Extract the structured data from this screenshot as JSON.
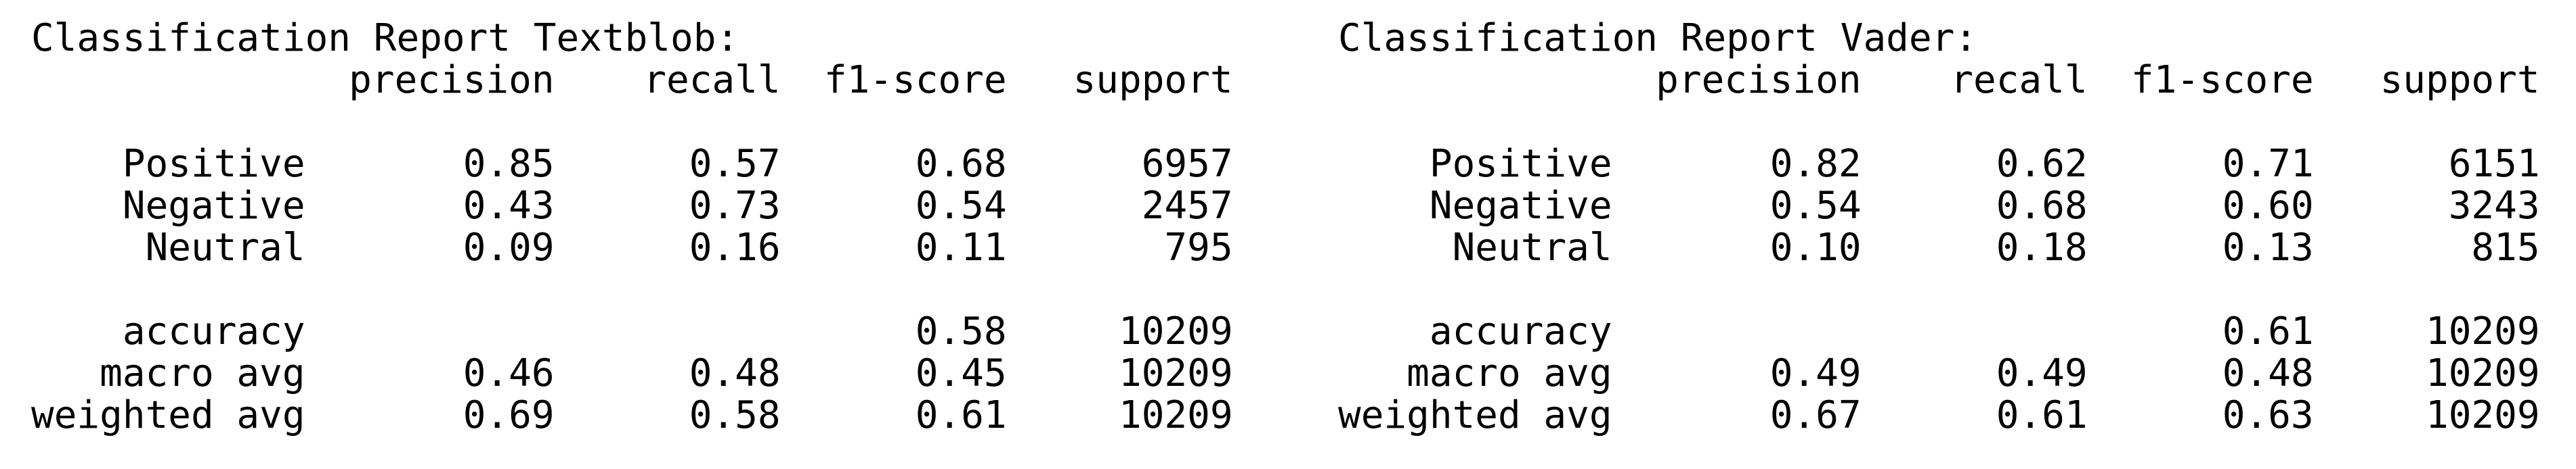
{
  "reports": [
    {
      "title": "Classification Report Textblob:",
      "headers": {
        "precision": "precision",
        "recall": "recall",
        "f1": "f1-score",
        "support": "support"
      },
      "class_rows": [
        {
          "label": "Positive",
          "precision": "0.85",
          "recall": "0.57",
          "f1": "0.68",
          "support": "6957"
        },
        {
          "label": "Negative",
          "precision": "0.43",
          "recall": "0.73",
          "f1": "0.54",
          "support": "2457"
        },
        {
          "label": "Neutral",
          "precision": "0.09",
          "recall": "0.16",
          "f1": "0.11",
          "support": "795"
        }
      ],
      "summary_rows": [
        {
          "label": "accuracy",
          "precision": "",
          "recall": "",
          "f1": "0.58",
          "support": "10209"
        },
        {
          "label": "macro avg",
          "precision": "0.46",
          "recall": "0.48",
          "f1": "0.45",
          "support": "10209"
        },
        {
          "label": "weighted avg",
          "precision": "0.69",
          "recall": "0.58",
          "f1": "0.61",
          "support": "10209"
        }
      ]
    },
    {
      "title": "Classification Report Vader:",
      "headers": {
        "precision": "precision",
        "recall": "recall",
        "f1": "f1-score",
        "support": "support"
      },
      "class_rows": [
        {
          "label": "Positive",
          "precision": "0.82",
          "recall": "0.62",
          "f1": "0.71",
          "support": "6151"
        },
        {
          "label": "Negative",
          "precision": "0.54",
          "recall": "0.68",
          "f1": "0.60",
          "support": "3243"
        },
        {
          "label": "Neutral",
          "precision": "0.10",
          "recall": "0.18",
          "f1": "0.13",
          "support": "815"
        }
      ],
      "summary_rows": [
        {
          "label": "accuracy",
          "precision": "",
          "recall": "",
          "f1": "0.61",
          "support": "10209"
        },
        {
          "label": "macro avg",
          "precision": "0.49",
          "recall": "0.49",
          "f1": "0.48",
          "support": "10209"
        },
        {
          "label": "weighted avg",
          "precision": "0.67",
          "recall": "0.61",
          "f1": "0.63",
          "support": "10209"
        }
      ]
    }
  ]
}
